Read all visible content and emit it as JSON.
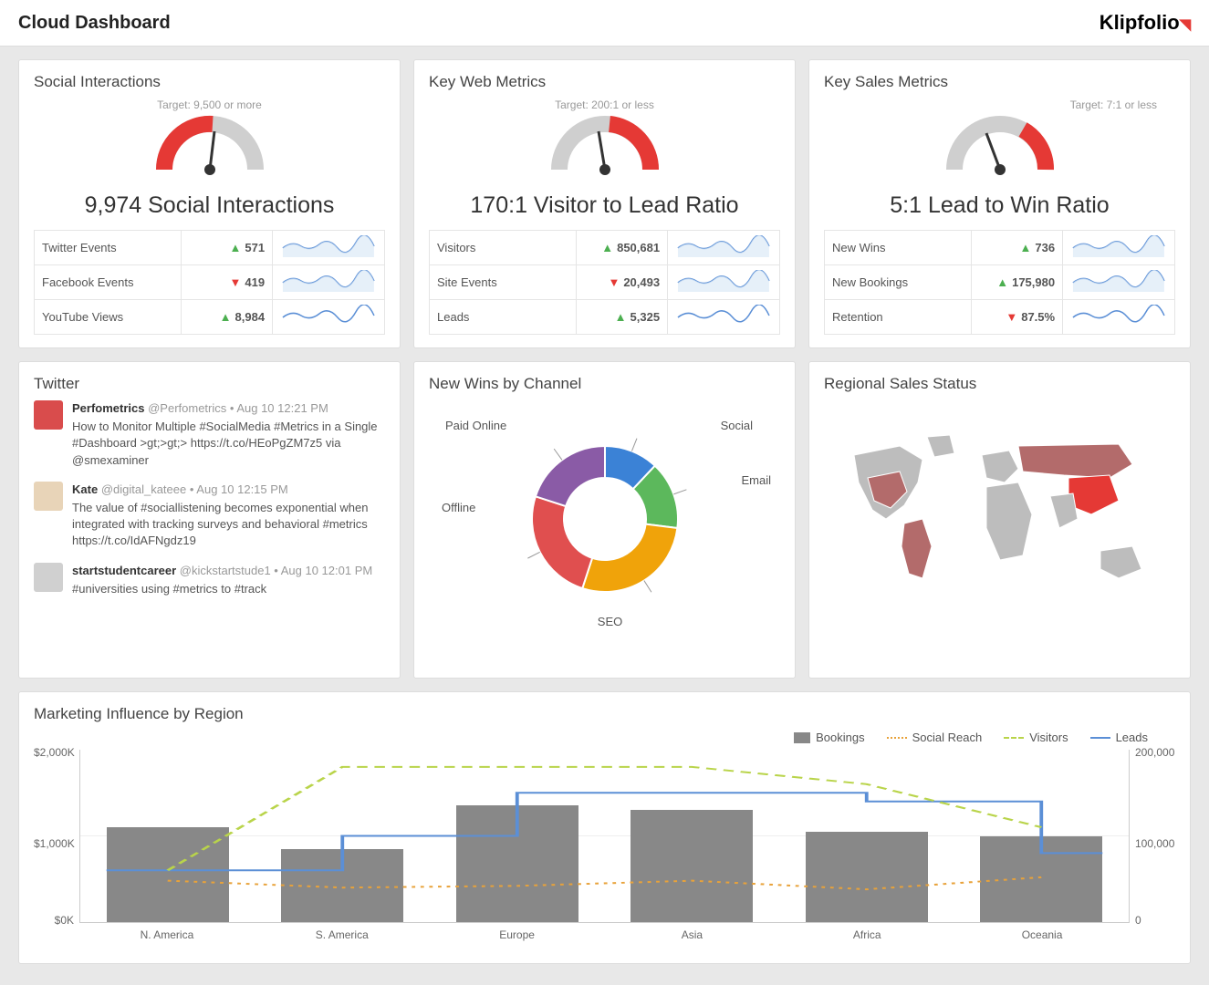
{
  "header": {
    "title": "Cloud Dashboard",
    "logo": "Klipfolio"
  },
  "colors": {
    "up": "#4caf50",
    "down": "#e53935",
    "gauge_red": "#e53935",
    "gauge_grey": "#cfcfcf",
    "spark_line": "#5b8fd6",
    "spark_fill": "#dbe9f7",
    "bar": "#888888",
    "social_reach": "#e8a23a",
    "visitors": "#b9d44a",
    "leads": "#5b8fd6",
    "donut_social": "#3b82d6",
    "donut_email": "#5cb85c",
    "donut_seo": "#f0a30a",
    "donut_offline": "#e04f4f",
    "donut_paid": "#8a5ba6",
    "map_base": "#bdbdbd",
    "map_hot": "#e53935",
    "map_warm": "#b36b6b"
  },
  "cards": {
    "social": {
      "title": "Social Interactions",
      "target": "Target: 9,500 or more",
      "headline": "9,974 Social Interactions",
      "gauge": {
        "fill_pct": 52,
        "direction": "left_red"
      },
      "rows": [
        {
          "label": "Twitter Events",
          "dir": "up",
          "value": "571"
        },
        {
          "label": "Facebook Events",
          "dir": "down",
          "value": "419"
        },
        {
          "label": "YouTube Views",
          "dir": "up",
          "value": "8,984"
        }
      ]
    },
    "web": {
      "title": "Key Web Metrics",
      "target": "Target: 200:1 or less",
      "headline": "170:1 Visitor to Lead Ratio",
      "gauge": {
        "fill_pct": 38,
        "direction": "right_red"
      },
      "rows": [
        {
          "label": "Visitors",
          "dir": "up",
          "value": "850,681"
        },
        {
          "label": "Site Events",
          "dir": "down",
          "value": "20,493"
        },
        {
          "label": "Leads",
          "dir": "up",
          "value": "5,325"
        }
      ]
    },
    "sales": {
      "title": "Key Sales Metrics",
      "target": "Target: 7:1 or less",
      "headline": "5:1 Lead to Win Ratio",
      "gauge": {
        "fill_pct": 30,
        "direction": "right_red"
      },
      "rows": [
        {
          "label": "New Wins",
          "dir": "up",
          "value": "736"
        },
        {
          "label": "New Bookings",
          "dir": "up",
          "value": "175,980"
        },
        {
          "label": "Retention",
          "dir": "down",
          "value": "87.5%"
        }
      ]
    }
  },
  "twitter": {
    "title": "Twitter",
    "tweets": [
      {
        "user": "Perfometrics",
        "handle": "@Perfometrics",
        "time": "Aug 10 12:21 PM",
        "body": "How to Monitor Multiple #SocialMedia #Metrics in a Single #Dashboard >gt;>gt;> https://t.co/HEoPgZM7z5 via @smexaminer",
        "avatar_color": "#d94c4c"
      },
      {
        "user": "Kate",
        "handle": "@digital_kateee",
        "time": "Aug 10 12:15 PM",
        "body": "The value of #sociallistening becomes exponential when integrated with tracking surveys and behavioral #metrics https://t.co/IdAFNgdz19",
        "avatar_color": "#e8d4b8"
      },
      {
        "user": "startstudentcareer",
        "handle": "@kickstartstude1",
        "time": "Aug 10 12:01 PM",
        "body": "#universities using #metrics to #track",
        "avatar_color": "#d0d0d0"
      }
    ]
  },
  "donut": {
    "title": "New Wins by Channel",
    "slices": [
      {
        "label": "Social",
        "pct": 12,
        "color": "#3b82d6"
      },
      {
        "label": "Email",
        "pct": 15,
        "color": "#5cb85c"
      },
      {
        "label": "SEO",
        "pct": 28,
        "color": "#f0a30a"
      },
      {
        "label": "Offline",
        "pct": 25,
        "color": "#e04f4f"
      },
      {
        "label": "Paid Online",
        "pct": 20,
        "color": "#8a5ba6"
      }
    ]
  },
  "map": {
    "title": "Regional Sales Status"
  },
  "marketing": {
    "title": "Marketing Influence by Region",
    "legend": {
      "bookings": "Bookings",
      "social_reach": "Social Reach",
      "visitors": "Visitors",
      "leads": "Leads"
    },
    "categories": [
      "N. America",
      "S. America",
      "Europe",
      "Asia",
      "Africa",
      "Oceania"
    ],
    "y_left": {
      "ticks": [
        "$0K",
        "$1,000K",
        "$2,000K"
      ],
      "max": 2000
    },
    "y_right": {
      "ticks": [
        "0",
        "100,000",
        "200,000"
      ],
      "max": 200000
    },
    "bookings": [
      1100,
      850,
      1350,
      1300,
      1050,
      1000
    ],
    "social_reach": [
      48000,
      40000,
      42000,
      48000,
      38000,
      52000
    ],
    "visitors": [
      60000,
      180000,
      180000,
      180000,
      160000,
      110000
    ],
    "leads": [
      60000,
      100000,
      150000,
      150000,
      140000,
      80000
    ]
  }
}
